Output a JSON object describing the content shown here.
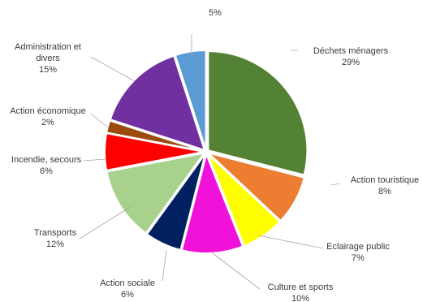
{
  "chart_data": {
    "type": "pie",
    "title": "",
    "start_angle_deg": 0,
    "direction": "clockwise",
    "exploded": true,
    "slices": [
      {
        "name": "Déchets ménagers",
        "value": 29,
        "label": "29%",
        "color": "#548235"
      },
      {
        "name": "Action touristique",
        "value": 8,
        "label": "8%",
        "color": "#ed7d31"
      },
      {
        "name": "Eclairage public",
        "value": 7,
        "label": "7%",
        "color": "#ffff00"
      },
      {
        "name": "Culture et sports",
        "value": 10,
        "label": "10%",
        "color": "#f012d9"
      },
      {
        "name": "Action sociale",
        "value": 6,
        "label": "6%",
        "color": "#002060"
      },
      {
        "name": "Transports",
        "value": 12,
        "label": "12%",
        "color": "#a9d18e"
      },
      {
        "name": "Incendie, secours",
        "value": 6,
        "label": "6%",
        "color": "#ff0000"
      },
      {
        "name": "Action économique",
        "value": 2,
        "label": "2%",
        "color": "#9c4a10"
      },
      {
        "name": "Administration et divers",
        "value": 15,
        "label": "15%",
        "color": "#7030a0"
      },
      {
        "name": "",
        "value": 5,
        "label": "5%",
        "color": "#5b9bd5"
      }
    ]
  }
}
